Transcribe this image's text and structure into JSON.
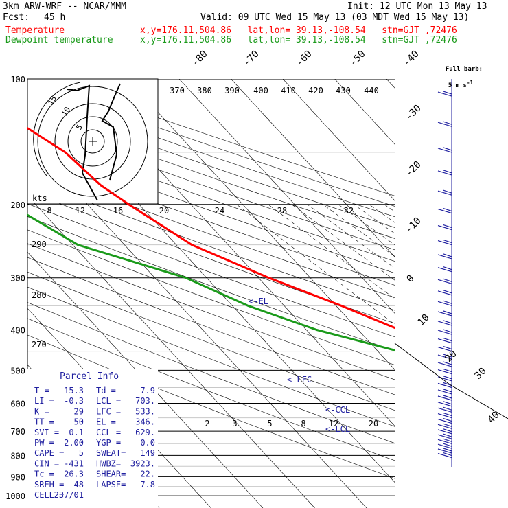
{
  "header": {
    "model": "3km ARW-WRF -- NCAR/MMM",
    "init": "Init: 12 UTC Mon 13 May 13",
    "fcst_label": "Fcst:",
    "fcst_value": "45 h",
    "valid": "Valid: 09 UTC Wed 15 May 13 (03 MDT Wed 15 May 13)",
    "temp_label": "Temperature",
    "temp_info": "x,y=176.11,504.86   lat,lon= 39.13,-108.54   stn=GJT ,72476",
    "dew_label": "Dewpoint temperature",
    "dew_info": "x,y=176.11,504.86   lat,lon= 39.13,-108.54   stn=GJT ,72476"
  },
  "colors": {
    "temperature": "#ff0000",
    "dewpoint": "#1a9a1a",
    "wind": "#2020a0"
  },
  "barb_legend": {
    "title": "Full barb:",
    "value": "5 m s",
    "exp": "-1"
  },
  "hodograph": {
    "units": "kts",
    "ring_labels": [
      "5",
      "10",
      "15"
    ]
  },
  "parcel_info": {
    "title": "Parcel Info",
    "rows": [
      [
        "T  =",
        "15.3",
        "Td =",
        "7.9"
      ],
      [
        "LI =",
        "-0.3",
        "LCL =",
        "703."
      ],
      [
        "K  =",
        "29",
        "LFC =",
        "533."
      ],
      [
        "TT =",
        "50",
        "EL =",
        "346."
      ],
      [
        "SVI =",
        "0.1",
        "CCL =",
        "629."
      ],
      [
        "PW =",
        "2.00",
        "YGP =",
        "0.0"
      ],
      [
        "CAPE =",
        "5",
        "SWEAT=",
        "149"
      ],
      [
        "CIN =",
        "-431",
        "HWBZ=",
        "3923."
      ],
      [
        "Tc =",
        "26.3",
        "SHEAR=",
        "22."
      ],
      [
        "SREH =",
        "48",
        "LAPSE=",
        "7.8"
      ],
      [
        "CELL =",
        "237/01",
        "",
        ""
      ]
    ]
  },
  "level_labels": [
    "<-EL",
    "<-LFC",
    "<-CCL",
    "<-LCL"
  ],
  "chart_data": {
    "type": "line",
    "title": "Skew-T log-p sounding",
    "y_axis": {
      "scale": "log",
      "ticks": [
        100,
        200,
        300,
        400,
        500,
        600,
        700,
        800,
        900,
        1000
      ]
    },
    "temperature_ticks": [
      -80,
      -70,
      -60,
      -50,
      -40,
      -30,
      -20,
      -10,
      0,
      10,
      20,
      30,
      40
    ],
    "theta_e_labels": [
      370,
      380,
      390,
      400,
      410,
      420,
      430,
      440
    ],
    "mixing_ratio_labels": [
      2,
      3,
      5,
      8,
      12,
      20
    ],
    "theta_labels": [
      290,
      280,
      270
    ],
    "theta_e_lower_labels": [
      8,
      12,
      16,
      20,
      24,
      28,
      32
    ],
    "series": [
      {
        "name": "Temperature",
        "points": [
          [
            100,
            -69
          ],
          [
            120,
            -60
          ],
          [
            150,
            -55
          ],
          [
            180,
            -54
          ],
          [
            200,
            -52
          ],
          [
            250,
            -47
          ],
          [
            300,
            -38
          ],
          [
            350,
            -29
          ],
          [
            400,
            -22
          ],
          [
            450,
            -15
          ],
          [
            500,
            -10
          ],
          [
            550,
            -3
          ],
          [
            600,
            3
          ],
          [
            650,
            7
          ],
          [
            700,
            11
          ],
          [
            750,
            14
          ],
          [
            780,
            15
          ],
          [
            800,
            15.3
          ],
          [
            825,
            15
          ]
        ]
      },
      {
        "name": "Dewpoint temperature",
        "points": [
          [
            100,
            -86
          ],
          [
            150,
            -81
          ],
          [
            200,
            -75
          ],
          [
            250,
            -69
          ],
          [
            300,
            -54
          ],
          [
            350,
            -47
          ],
          [
            400,
            -38
          ],
          [
            450,
            -26
          ],
          [
            500,
            -17
          ],
          [
            550,
            -10
          ],
          [
            600,
            -5
          ],
          [
            700,
            2
          ],
          [
            750,
            4
          ],
          [
            800,
            5
          ],
          [
            825,
            7.9
          ]
        ]
      }
    ]
  }
}
